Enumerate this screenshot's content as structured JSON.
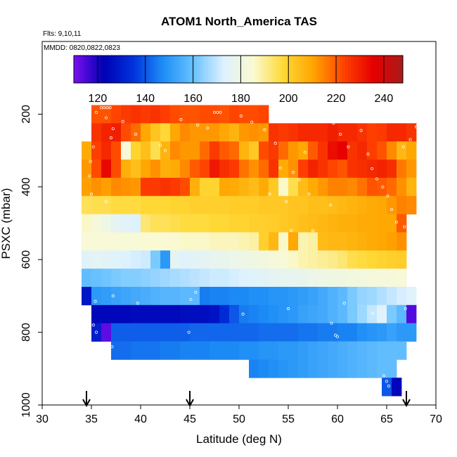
{
  "chart_data": {
    "type": "heatmap",
    "title": "ATOM1 North_America TAS",
    "flights_label": "Flts: 9,10,11",
    "dates_label": "MMDD: 0820,0822,0823",
    "xlabel": "Latitude (deg N)",
    "ylabel": "PSXC (mbar)",
    "xlim": [
      30,
      70
    ],
    "ylim": [
      1000,
      0
    ],
    "x_ticks": [
      30,
      35,
      40,
      45,
      50,
      55,
      60,
      65,
      70
    ],
    "x_tick_labels": [
      "30",
      "35",
      "40",
      "45",
      "50",
      "55",
      "60",
      "65",
      "70"
    ],
    "y_ticks": [
      200,
      400,
      600,
      800,
      1000
    ],
    "y_tick_labels": [
      "200",
      "400",
      "600",
      "800",
      "1000"
    ],
    "colorbar": {
      "range": [
        110,
        248
      ],
      "ticks": [
        120,
        140,
        160,
        180,
        200,
        220,
        240
      ],
      "tick_labels": [
        "120",
        "140",
        "160",
        "180",
        "200",
        "220",
        "240"
      ],
      "colors": [
        "#7a10f0",
        "#0000b4",
        "#0033dd",
        "#1e8ff6",
        "#69c2ff",
        "#ddf1ff",
        "#fafad2",
        "#ffd936",
        "#ffa500",
        "#ff4400",
        "#e60000",
        "#a81b1b"
      ]
    },
    "arrows_latitude": [
      34.5,
      45,
      67
    ],
    "cell_size": {
      "dlat": 1,
      "dp": 50
    },
    "rows": [
      {
        "p": 200,
        "lat_start": 35,
        "values": [
          221,
          221,
          223,
          225,
          226,
          225,
          226,
          224,
          222,
          221,
          221,
          222,
          222,
          221,
          223,
          222,
          222,
          223
        ]
      },
      {
        "p": 250,
        "lat_start": 35,
        "values": [
          226,
          229,
          230,
          222,
          218,
          210,
          203,
          198,
          210,
          214,
          212,
          212,
          212,
          210,
          207,
          212,
          213,
          212,
          226,
          225,
          226,
          228,
          228,
          228,
          230,
          228,
          228,
          226,
          224,
          225,
          228,
          228,
          226
        ]
      },
      {
        "p": 300,
        "lat_start": 34,
        "values": [
          209,
          224,
          228,
          222,
          184,
          199,
          204,
          196,
          207,
          214,
          212,
          212,
          218,
          225,
          220,
          218,
          207,
          202,
          222,
          225,
          218,
          212,
          210,
          220,
          226,
          233,
          235,
          226,
          228,
          224,
          221,
          214,
          206,
          210
        ]
      },
      {
        "p": 350,
        "lat_start": 34,
        "values": [
          212,
          222,
          234,
          222,
          208,
          204,
          210,
          213,
          208,
          209,
          214,
          220,
          223,
          231,
          227,
          225,
          217,
          213,
          218,
          226,
          209,
          213,
          224,
          229,
          226,
          223,
          221,
          226,
          227,
          228,
          229,
          227,
          216,
          212
        ]
      },
      {
        "p": 400,
        "lat_start": 34,
        "values": [
          211,
          213,
          211,
          214,
          213,
          212,
          225,
          225,
          226,
          225,
          222,
          208,
          199,
          199,
          210,
          209,
          207,
          205,
          209,
          202,
          186,
          196,
          205,
          209,
          212,
          215,
          215,
          214,
          217,
          221,
          220,
          218,
          213,
          207
        ]
      },
      {
        "p": 450,
        "lat_start": 34,
        "values": [
          195,
          196,
          196,
          197,
          197,
          197,
          198,
          198,
          198,
          199,
          199,
          200,
          200,
          200,
          200,
          201,
          201,
          201,
          202,
          202,
          202,
          203,
          203,
          204,
          204,
          205,
          206,
          207,
          208,
          209,
          210,
          212,
          215,
          214
        ]
      },
      {
        "p": 500,
        "lat_start": 34,
        "values": [
          186,
          183,
          180,
          176,
          174,
          173,
          193,
          195,
          195,
          196,
          197,
          197,
          197,
          198,
          198,
          199,
          199,
          200,
          200,
          201,
          202,
          203,
          204,
          205,
          206,
          207,
          208,
          208,
          209,
          209,
          210,
          210,
          220
        ]
      },
      {
        "p": 550,
        "lat_start": 34,
        "values": [
          184,
          184,
          184,
          184,
          184,
          184,
          185,
          185,
          185,
          185,
          186,
          186,
          186,
          187,
          187,
          187,
          188,
          189,
          200,
          206,
          186,
          210,
          188,
          189,
          205,
          206,
          206,
          207,
          208,
          209,
          210,
          211,
          213
        ]
      },
      {
        "p": 600,
        "lat_start": 34,
        "values": [
          174,
          176,
          175,
          174,
          173,
          172,
          171,
          162,
          150,
          176,
          174,
          175,
          176,
          177,
          178,
          179,
          180,
          181,
          182,
          183,
          184,
          186,
          188,
          189,
          190,
          191,
          193,
          196,
          197,
          198,
          199,
          200,
          201
        ]
      },
      {
        "p": 650,
        "lat_start": 34,
        "values": [
          159,
          160,
          161,
          162,
          163,
          163,
          164,
          165,
          166,
          167,
          168,
          169,
          170,
          171,
          171,
          172,
          173,
          174,
          175,
          176,
          177,
          177,
          178,
          179,
          180,
          181,
          181,
          182,
          182,
          183,
          183,
          183,
          184
        ]
      },
      {
        "p": 700,
        "lat_start": 34,
        "values": [
          128,
          150,
          151,
          152,
          153,
          154,
          155,
          156,
          157,
          157,
          158,
          158,
          145,
          146,
          146,
          147,
          147,
          148,
          148,
          149,
          149,
          150,
          151,
          152,
          154,
          156,
          158,
          162,
          165,
          166,
          168,
          170,
          172,
          174
        ]
      },
      {
        "p": 750,
        "lat_start": 35,
        "values": [
          124,
          124,
          124,
          124,
          125,
          125,
          125,
          125,
          125,
          126,
          126,
          126,
          127,
          133,
          140,
          145,
          146,
          147,
          148,
          149,
          150,
          152,
          153,
          154,
          156,
          158,
          162,
          166,
          170,
          174,
          162,
          158,
          114
        ]
      },
      {
        "p": 800,
        "lat_start": 35,
        "values": [
          130,
          113,
          141,
          141,
          141,
          141,
          141,
          141,
          141,
          141,
          142,
          142,
          142,
          142,
          142,
          142,
          142,
          143,
          143,
          143,
          143,
          144,
          144,
          145,
          145,
          146,
          146,
          148,
          149,
          150,
          152,
          150,
          150
        ]
      },
      {
        "p": 850,
        "lat_start": 37,
        "values": [
          143,
          143,
          144,
          144,
          144,
          145,
          145,
          146,
          146,
          146,
          147,
          147,
          147,
          148,
          148,
          149,
          149,
          150,
          150,
          151,
          152,
          153,
          154,
          155,
          156,
          157,
          158,
          159,
          159,
          159
        ]
      },
      {
        "p": 900,
        "lat_start": 51,
        "values": [
          146,
          147,
          148,
          149,
          150,
          151,
          152,
          153,
          154,
          155,
          156,
          157,
          158,
          159,
          159
        ]
      },
      {
        "p": 950,
        "lat_start": 64.5,
        "values": [
          140,
          124
        ]
      }
    ],
    "flight_points": [
      {
        "lat": 36.0,
        "p": 182
      },
      {
        "lat": 36.3,
        "p": 182
      },
      {
        "lat": 36.6,
        "p": 182
      },
      {
        "lat": 36.9,
        "p": 182
      },
      {
        "lat": 35.5,
        "p": 195
      },
      {
        "lat": 36.5,
        "p": 210
      },
      {
        "lat": 37.2,
        "p": 240
      },
      {
        "lat": 37.0,
        "p": 265
      },
      {
        "lat": 35.2,
        "p": 290
      },
      {
        "lat": 34.9,
        "p": 330
      },
      {
        "lat": 34.8,
        "p": 370
      },
      {
        "lat": 35.0,
        "p": 420
      },
      {
        "lat": 36.5,
        "p": 440
      },
      {
        "lat": 38.2,
        "p": 220
      },
      {
        "lat": 39.5,
        "p": 255
      },
      {
        "lat": 42.0,
        "p": 285
      },
      {
        "lat": 42.5,
        "p": 300
      },
      {
        "lat": 44.1,
        "p": 215
      },
      {
        "lat": 45.8,
        "p": 230
      },
      {
        "lat": 46.8,
        "p": 238
      },
      {
        "lat": 47.5,
        "p": 195
      },
      {
        "lat": 47.8,
        "p": 195
      },
      {
        "lat": 48.1,
        "p": 195
      },
      {
        "lat": 50.2,
        "p": 205
      },
      {
        "lat": 51.3,
        "p": 222
      },
      {
        "lat": 52.6,
        "p": 243
      },
      {
        "lat": 53.7,
        "p": 280
      },
      {
        "lat": 54.2,
        "p": 348
      },
      {
        "lat": 54.8,
        "p": 440
      },
      {
        "lat": 55.5,
        "p": 360
      },
      {
        "lat": 56.1,
        "p": 380
      },
      {
        "lat": 56.7,
        "p": 305
      },
      {
        "lat": 57.1,
        "p": 420
      },
      {
        "lat": 57.5,
        "p": 520
      },
      {
        "lat": 57.9,
        "p": 218
      },
      {
        "lat": 58.4,
        "p": 218
      },
      {
        "lat": 58.8,
        "p": 218
      },
      {
        "lat": 59.2,
        "p": 218
      },
      {
        "lat": 59.6,
        "p": 225
      },
      {
        "lat": 60.3,
        "p": 255
      },
      {
        "lat": 61.1,
        "p": 290
      },
      {
        "lat": 61.6,
        "p": 218
      },
      {
        "lat": 62.0,
        "p": 218
      },
      {
        "lat": 62.4,
        "p": 245
      },
      {
        "lat": 63.1,
        "p": 310
      },
      {
        "lat": 63.5,
        "p": 350
      },
      {
        "lat": 64.0,
        "p": 378
      },
      {
        "lat": 64.6,
        "p": 400
      },
      {
        "lat": 65.1,
        "p": 425
      },
      {
        "lat": 65.5,
        "p": 462
      },
      {
        "lat": 66.0,
        "p": 497
      },
      {
        "lat": 66.8,
        "p": 510
      },
      {
        "lat": 67.5,
        "p": 480
      },
      {
        "lat": 68.0,
        "p": 235
      },
      {
        "lat": 68.4,
        "p": 248
      },
      {
        "lat": 67.4,
        "p": 270
      },
      {
        "lat": 66.7,
        "p": 290
      },
      {
        "lat": 45.6,
        "p": 690
      },
      {
        "lat": 45.1,
        "p": 710
      },
      {
        "lat": 39.7,
        "p": 720
      },
      {
        "lat": 37.2,
        "p": 700
      },
      {
        "lat": 35.4,
        "p": 715
      },
      {
        "lat": 35.2,
        "p": 780
      },
      {
        "lat": 35.5,
        "p": 800
      },
      {
        "lat": 37.1,
        "p": 840
      },
      {
        "lat": 44.9,
        "p": 800
      },
      {
        "lat": 50.4,
        "p": 750
      },
      {
        "lat": 55.0,
        "p": 735
      },
      {
        "lat": 59.4,
        "p": 775
      },
      {
        "lat": 59.8,
        "p": 808
      },
      {
        "lat": 60.0,
        "p": 812
      },
      {
        "lat": 64.7,
        "p": 920
      },
      {
        "lat": 65.0,
        "p": 935
      },
      {
        "lat": 65.2,
        "p": 948
      },
      {
        "lat": 66.9,
        "p": 735
      },
      {
        "lat": 60.7,
        "p": 720
      },
      {
        "lat": 63.6,
        "p": 748
      },
      {
        "lat": 55.3,
        "p": 520
      },
      {
        "lat": 59.3,
        "p": 450
      },
      {
        "lat": 53.1,
        "p": 420
      }
    ]
  }
}
